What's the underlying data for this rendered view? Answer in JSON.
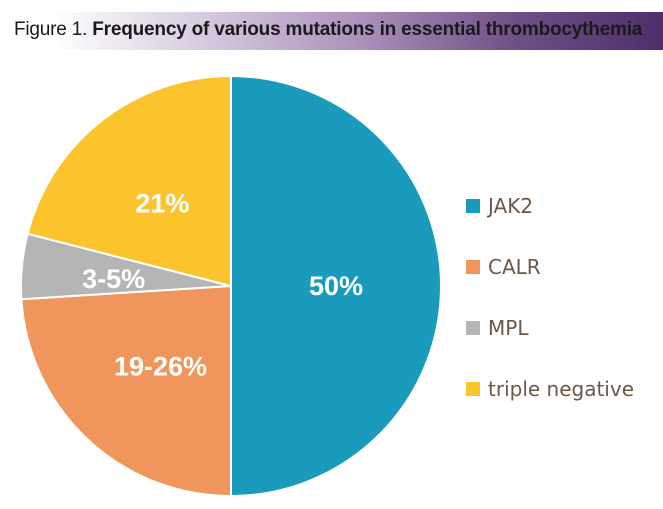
{
  "title_prefix": "Figure 1.",
  "title_main": "Frequency of various mutations in essential thrombocythemia",
  "chart_data": {
    "type": "pie",
    "title": "Figure 1. Frequency of various mutations in essential thrombocythemia",
    "slices": [
      {
        "name": "JAK2",
        "label": "50%",
        "value": 50,
        "color": "#1a9bbd"
      },
      {
        "name": "CALR",
        "label": "19-26%",
        "value": 24,
        "color": "#f0955b"
      },
      {
        "name": "MPL",
        "label": "3-5%",
        "value": 5,
        "color": "#b5b5b5"
      },
      {
        "name": "triple negative",
        "label": "21%",
        "value": 21,
        "color": "#fcc42c"
      }
    ],
    "legend_position": "right"
  }
}
